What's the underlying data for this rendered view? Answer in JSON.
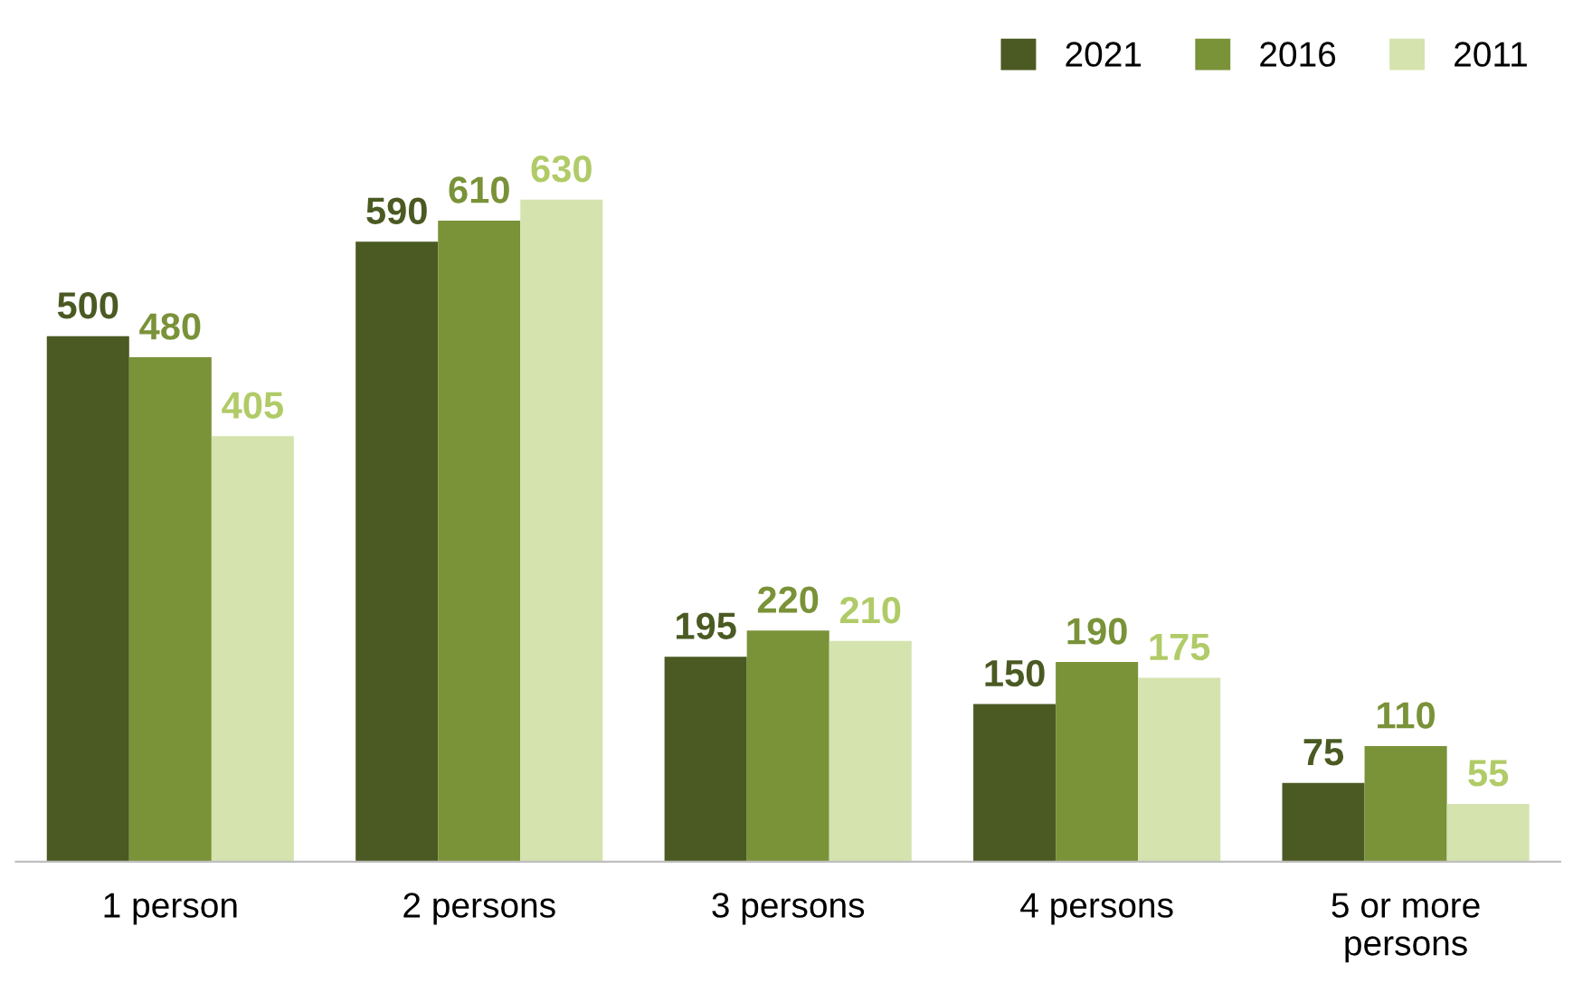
{
  "chart_data": {
    "type": "bar",
    "categories": [
      "1 person",
      "2 persons",
      "3 persons",
      "4 persons",
      "5 or more\npersons"
    ],
    "series": [
      {
        "name": "2021",
        "color": "#4a5a22",
        "values": [
          500,
          590,
          195,
          150,
          75
        ]
      },
      {
        "name": "2016",
        "color": "#7a9238",
        "values": [
          480,
          610,
          220,
          190,
          110
        ]
      },
      {
        "name": "2011",
        "color": "#d5e3ae",
        "values": [
          405,
          630,
          210,
          175,
          55
        ]
      }
    ],
    "data_labels": true,
    "legend": "top right",
    "grid": false
  }
}
